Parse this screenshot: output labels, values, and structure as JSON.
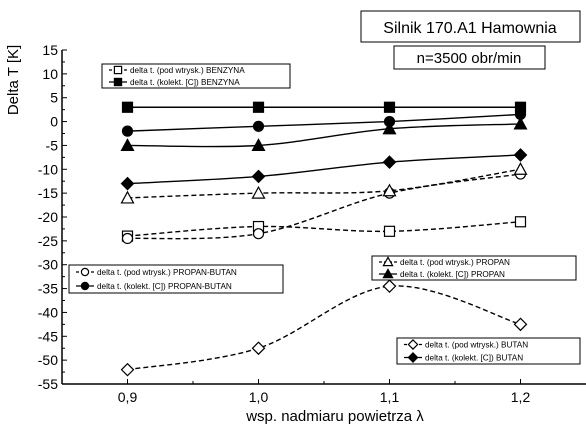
{
  "chart_data": {
    "type": "line",
    "title_box": "Silnik 170.A1  Hamownia",
    "subtitle_box": "n=3500 obr/min",
    "xlabel": "wsp. nadmiaru powietrza λ",
    "ylabel": "Delta T  [K]",
    "x_ticks": [
      "0,9",
      "1,0",
      "1,1",
      "1,2"
    ],
    "x": [
      0.9,
      1.0,
      1.1,
      1.2
    ],
    "xlim": [
      0.85,
      1.25
    ],
    "y_ticks": [
      "15",
      "10",
      "5",
      "0",
      "-5",
      "-10",
      "-15",
      "-20",
      "-25",
      "-30",
      "-35",
      "-40",
      "-45",
      "-50",
      "-55"
    ],
    "ylim": [
      -55,
      15
    ],
    "grid": "none",
    "legends": [
      {
        "name": "legend-benzyna",
        "entries": [
          "delta t. (pod wtrysk.)  BENZYNA",
          "delta t.  (kolekt. [C])  BENZYNA"
        ]
      },
      {
        "name": "legend-propan-butan",
        "entries": [
          "delta t. (pod wtrysk.)  PROPAN-BUTAN",
          "delta t.  (kolekt. [C])  PROPAN-BUTAN"
        ]
      },
      {
        "name": "legend-propan",
        "entries": [
          "delta t. (pod wtrysk.)  PROPAN",
          "delta t.  (kolekt. [C])  PROPAN"
        ]
      },
      {
        "name": "legend-butan",
        "entries": [
          "delta t. (pod wtrysk.)  BUTAN",
          "delta t.  (kolekt. [C])  BUTAN"
        ]
      }
    ],
    "series": [
      {
        "name": "delta t. (pod wtrysk.)  BENZYNA",
        "marker": "square-open",
        "line": "dashed",
        "values": [
          -24,
          -22,
          -23,
          -21
        ]
      },
      {
        "name": "delta t.  (kolekt. [C])  BENZYNA",
        "marker": "square-filled",
        "line": "solid",
        "values": [
          3,
          3,
          3,
          3
        ]
      },
      {
        "name": "delta t. (pod wtrysk.)  PROPAN-BUTAN",
        "marker": "circle-open",
        "line": "dashed",
        "values": [
          -24.5,
          -23.5,
          -15,
          -11
        ]
      },
      {
        "name": "delta t.  (kolekt. [C])  PROPAN-BUTAN",
        "marker": "circle-filled",
        "line": "solid",
        "values": [
          -2,
          -1,
          0,
          1.5
        ]
      },
      {
        "name": "delta t. (pod wtrysk.)  PROPAN",
        "marker": "triangle-open",
        "line": "dashed",
        "values": [
          -16,
          -15,
          -14.5,
          -10
        ]
      },
      {
        "name": "delta t.  (kolekt. [C])  PROPAN",
        "marker": "triangle-filled",
        "line": "solid",
        "values": [
          -5,
          -5,
          -1.5,
          -0.5
        ]
      },
      {
        "name": "delta t. (pod wtrysk.)  BUTAN",
        "marker": "diamond-open",
        "line": "dashed",
        "values": [
          -52,
          -47.5,
          -34.5,
          -42.5
        ]
      },
      {
        "name": "delta t.  (kolekt. [C])  BUTAN",
        "marker": "diamond-filled",
        "line": "solid",
        "values": [
          -13,
          -11.5,
          -8.5,
          -7
        ]
      }
    ]
  }
}
